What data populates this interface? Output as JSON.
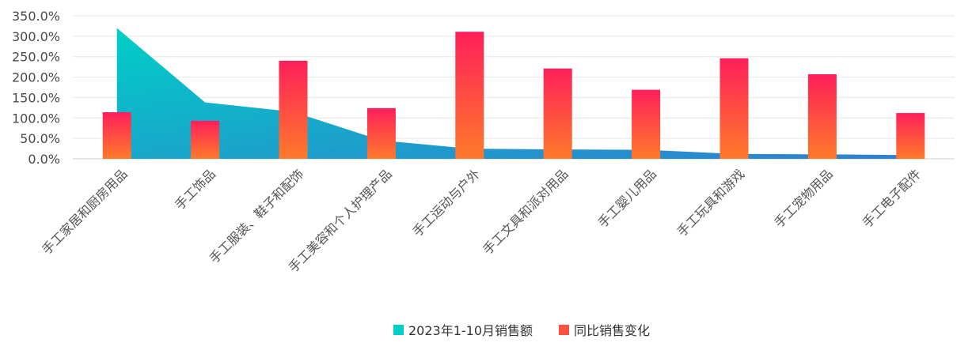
{
  "chart_data": {
    "type": "bar",
    "title": "",
    "xlabel": "",
    "ylabel": "",
    "ylim": [
      0,
      350
    ],
    "y_ticks": [
      "0.0%",
      "50.0%",
      "100.0%",
      "150.0%",
      "200.0%",
      "250.0%",
      "300.0%",
      "350.0%"
    ],
    "grid": true,
    "legend_position": "bottom-center",
    "categories": [
      "手工家居和厨房用品",
      "手工饰品",
      "手工服装、鞋子和配饰",
      "手工美容和个人护理产品",
      "手工运动与户外",
      "手工文具和派对用品",
      "手工婴儿用品",
      "手工玩具和游戏",
      "手工宠物用品",
      "手工电子配件"
    ],
    "series": [
      {
        "name": "2023年1-10月销售额",
        "type": "area",
        "values": [
          320,
          138,
          115,
          45,
          25,
          23,
          22,
          12,
          11,
          9
        ],
        "color_top": "#00cfc6",
        "color_bottom": "#2f7fd0"
      },
      {
        "name": "同比销售变化",
        "type": "bar",
        "values": [
          114,
          93,
          240,
          124,
          311,
          221,
          169,
          246,
          207,
          112
        ],
        "color_top": "#ff1f5a",
        "color_bottom": "#ff7a2a"
      }
    ]
  }
}
